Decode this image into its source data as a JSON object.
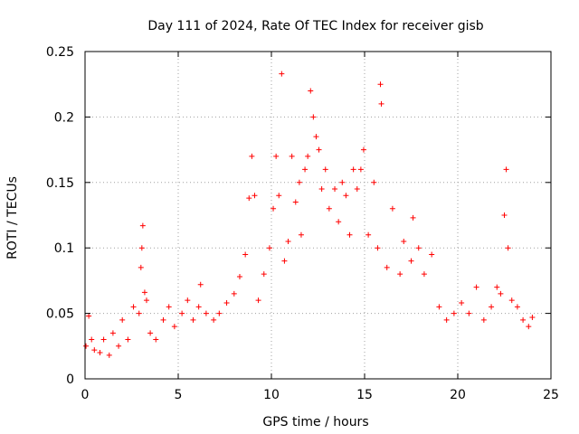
{
  "chart_data": {
    "type": "scatter",
    "title": "Day 111 of 2024, Rate Of TEC Index for receiver gisb",
    "xlabel": "GPS time / hours",
    "ylabel": "ROTI / TECUs",
    "xlim": [
      0,
      25
    ],
    "ylim": [
      0,
      0.25
    ],
    "xticks": [
      0,
      5,
      10,
      15,
      20,
      25
    ],
    "xtick_labels": [
      "0",
      "5",
      "10",
      "15",
      "20",
      "25"
    ],
    "yticks": [
      0,
      0.05,
      0.1,
      0.15,
      0.2,
      0.25
    ],
    "ytick_labels": [
      "0",
      "0.05",
      "0.1",
      "0.15",
      "0.2",
      "0.25"
    ],
    "grid": true,
    "marker": "+",
    "color": "#ff0000",
    "series": [
      {
        "name": "ROTI",
        "points": [
          [
            0.05,
            0.025
          ],
          [
            0.2,
            0.048
          ],
          [
            0.35,
            0.03
          ],
          [
            0.5,
            0.022
          ],
          [
            0.8,
            0.02
          ],
          [
            1.0,
            0.03
          ],
          [
            1.3,
            0.018
          ],
          [
            1.5,
            0.035
          ],
          [
            1.8,
            0.025
          ],
          [
            2.0,
            0.045
          ],
          [
            2.3,
            0.03
          ],
          [
            2.6,
            0.055
          ],
          [
            2.9,
            0.05
          ],
          [
            3.0,
            0.085
          ],
          [
            3.05,
            0.1
          ],
          [
            3.1,
            0.117
          ],
          [
            3.2,
            0.066
          ],
          [
            3.3,
            0.06
          ],
          [
            3.5,
            0.035
          ],
          [
            3.8,
            0.03
          ],
          [
            4.2,
            0.045
          ],
          [
            4.5,
            0.055
          ],
          [
            4.8,
            0.04
          ],
          [
            5.2,
            0.05
          ],
          [
            5.5,
            0.06
          ],
          [
            5.8,
            0.045
          ],
          [
            6.1,
            0.055
          ],
          [
            6.2,
            0.072
          ],
          [
            6.5,
            0.05
          ],
          [
            6.9,
            0.045
          ],
          [
            7.2,
            0.05
          ],
          [
            7.6,
            0.058
          ],
          [
            8.0,
            0.065
          ],
          [
            8.3,
            0.078
          ],
          [
            8.6,
            0.095
          ],
          [
            8.8,
            0.138
          ],
          [
            8.95,
            0.17
          ],
          [
            9.1,
            0.14
          ],
          [
            9.3,
            0.06
          ],
          [
            9.6,
            0.08
          ],
          [
            9.9,
            0.1
          ],
          [
            10.1,
            0.13
          ],
          [
            10.25,
            0.17
          ],
          [
            10.4,
            0.14
          ],
          [
            10.55,
            0.233
          ],
          [
            10.7,
            0.09
          ],
          [
            10.9,
            0.105
          ],
          [
            11.1,
            0.17
          ],
          [
            11.3,
            0.135
          ],
          [
            11.5,
            0.15
          ],
          [
            11.6,
            0.11
          ],
          [
            11.8,
            0.16
          ],
          [
            11.95,
            0.17
          ],
          [
            12.1,
            0.22
          ],
          [
            12.25,
            0.2
          ],
          [
            12.4,
            0.185
          ],
          [
            12.55,
            0.175
          ],
          [
            12.7,
            0.145
          ],
          [
            12.9,
            0.16
          ],
          [
            13.1,
            0.13
          ],
          [
            13.4,
            0.145
          ],
          [
            13.6,
            0.12
          ],
          [
            13.8,
            0.15
          ],
          [
            14.0,
            0.14
          ],
          [
            14.2,
            0.11
          ],
          [
            14.4,
            0.16
          ],
          [
            14.6,
            0.145
          ],
          [
            14.8,
            0.16
          ],
          [
            14.95,
            0.175
          ],
          [
            15.2,
            0.11
          ],
          [
            15.5,
            0.15
          ],
          [
            15.7,
            0.1
          ],
          [
            15.85,
            0.225
          ],
          [
            15.9,
            0.21
          ],
          [
            16.2,
            0.085
          ],
          [
            16.5,
            0.13
          ],
          [
            16.9,
            0.08
          ],
          [
            17.1,
            0.105
          ],
          [
            17.5,
            0.09
          ],
          [
            17.6,
            0.123
          ],
          [
            17.9,
            0.1
          ],
          [
            18.2,
            0.08
          ],
          [
            18.6,
            0.095
          ],
          [
            19.0,
            0.055
          ],
          [
            19.4,
            0.045
          ],
          [
            19.8,
            0.05
          ],
          [
            20.2,
            0.058
          ],
          [
            20.6,
            0.05
          ],
          [
            21.0,
            0.07
          ],
          [
            21.4,
            0.045
          ],
          [
            21.8,
            0.055
          ],
          [
            22.1,
            0.07
          ],
          [
            22.3,
            0.065
          ],
          [
            22.5,
            0.125
          ],
          [
            22.6,
            0.16
          ],
          [
            22.7,
            0.1
          ],
          [
            22.9,
            0.06
          ],
          [
            23.2,
            0.055
          ],
          [
            23.5,
            0.045
          ],
          [
            23.8,
            0.04
          ],
          [
            24.0,
            0.047
          ]
        ]
      }
    ]
  }
}
